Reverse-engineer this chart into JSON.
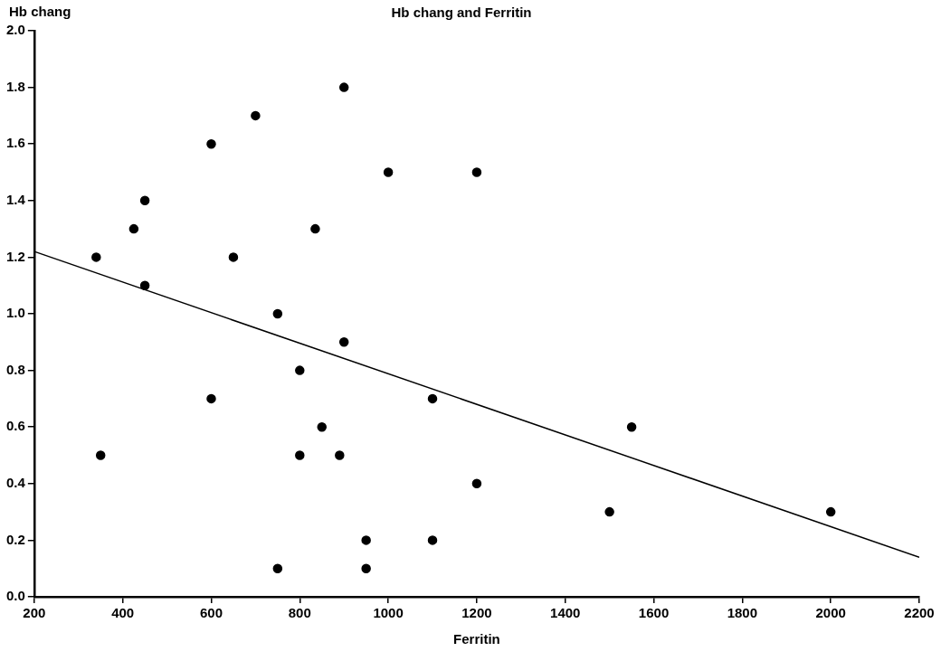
{
  "chart_data": {
    "type": "scatter",
    "title": "Hb chang and Ferritin",
    "xlabel": "Ferritin",
    "ylabel": "Hb chang",
    "xlim": [
      200,
      2200
    ],
    "xticks": [
      200,
      400,
      600,
      800,
      1000,
      1200,
      1400,
      1600,
      1800,
      2000,
      2200
    ],
    "ylim": [
      0,
      2
    ],
    "yticks": [
      {
        "value": 0,
        "label": "0.0"
      },
      0.2,
      0.4,
      0.6,
      0.8,
      {
        "value": 1,
        "label": "1.0"
      },
      1.2,
      1.4,
      1.6,
      1.8,
      {
        "value": 2,
        "label": "2.0"
      }
    ],
    "grid": false,
    "legend": false,
    "marker": "circle",
    "series": [
      {
        "color": "#000000",
        "x": [
          340,
          350,
          425,
          450,
          450,
          600,
          600,
          650,
          700,
          750,
          750,
          800,
          800,
          835,
          850,
          890,
          900,
          900,
          950,
          950,
          1000,
          1100,
          1100,
          1200,
          1200,
          1500,
          1550,
          2000
        ],
        "values": [
          1.2,
          0.5,
          1.3,
          1.4,
          1.1,
          1.6,
          0.7,
          1.2,
          1.7,
          1.0,
          0.1,
          0.8,
          0.5,
          1.3,
          0.6,
          0.5,
          1.8,
          0.9,
          0.2,
          0.1,
          1.5,
          0.7,
          0.2,
          1.5,
          0.4,
          0.3,
          0.6,
          0.3
        ]
      },
      {
        "type": "line",
        "color": "#000000",
        "marker": "none",
        "x": [
          200,
          2200
        ],
        "values": [
          1.22,
          0.14
        ]
      }
    ]
  }
}
